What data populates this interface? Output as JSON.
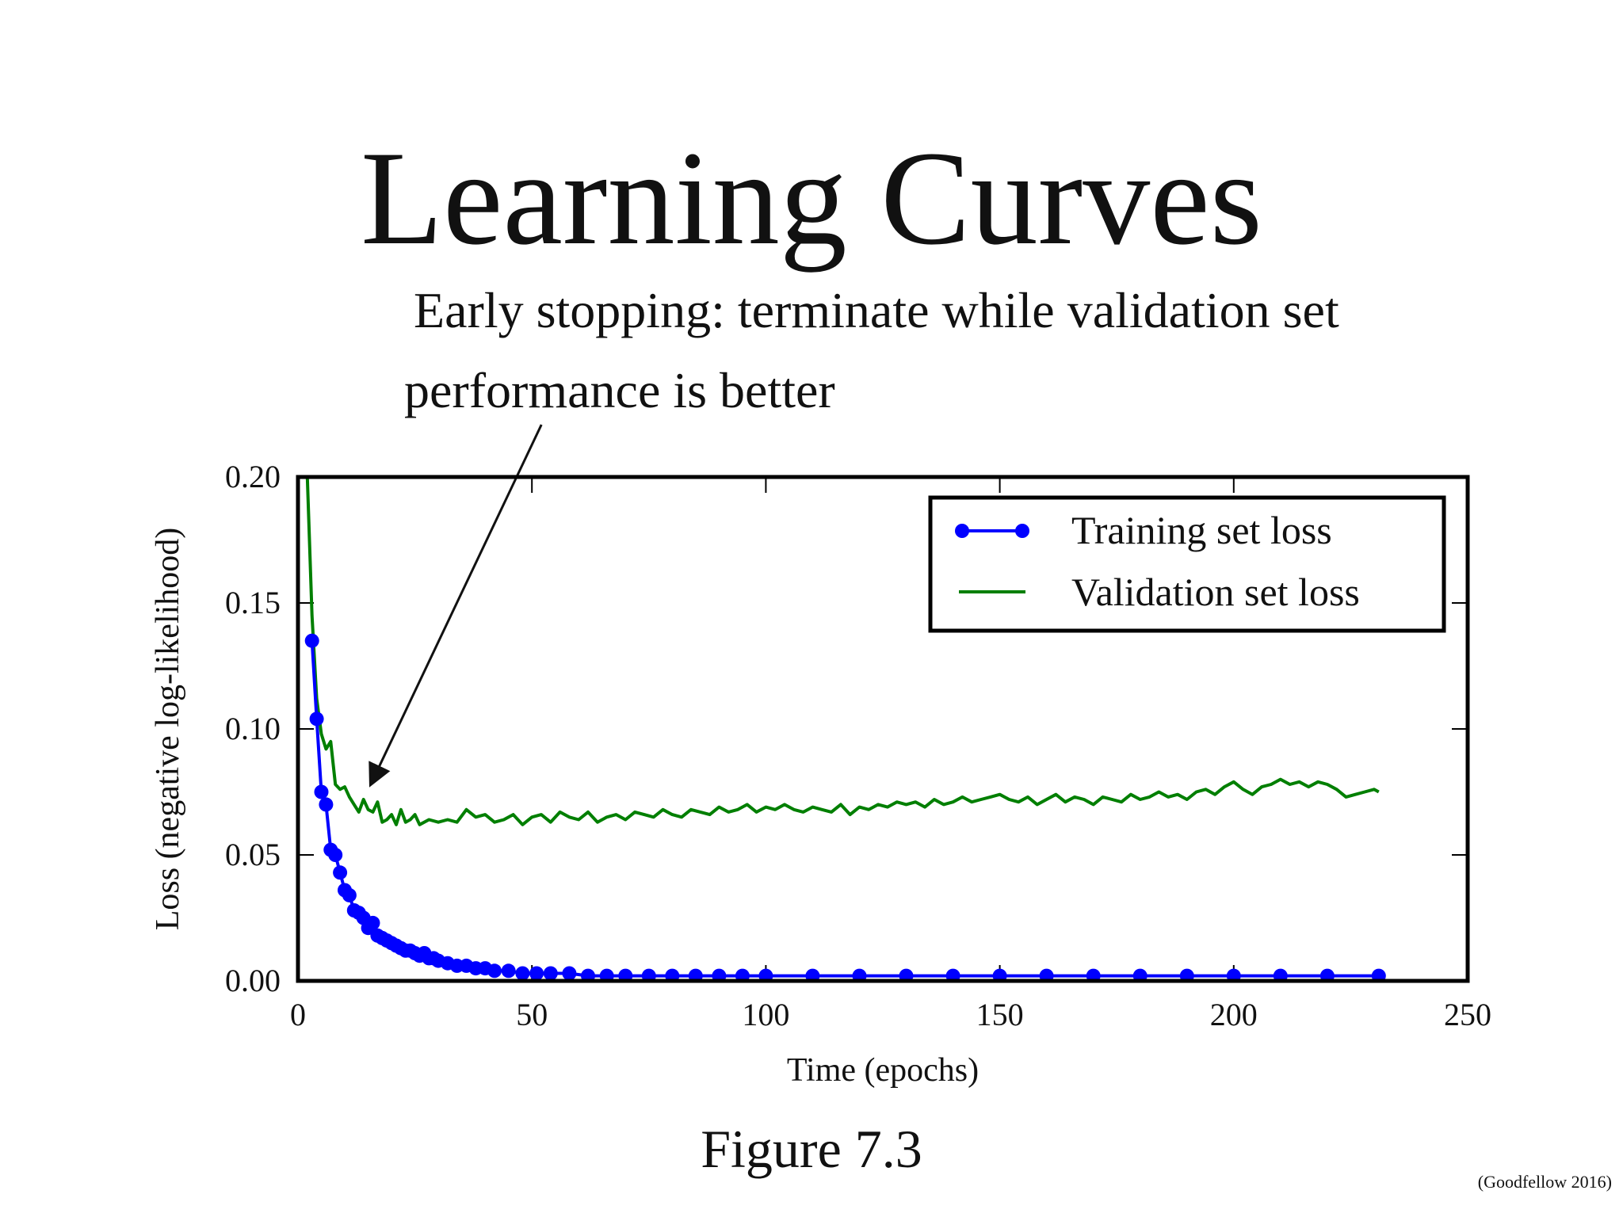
{
  "slide": {
    "title": "Learning Curves",
    "callout_line_1": "Early stopping: terminate while validation set",
    "callout_line_2": "performance is better",
    "caption": "Figure 7.3",
    "credit": "(Goodfellow 2016)"
  },
  "colors": {
    "training": "#0000ff",
    "validation": "#007f00",
    "axes": "#000000"
  },
  "chart_data": {
    "type": "line",
    "title": "",
    "xlabel": "Time (epochs)",
    "ylabel": "Loss (negative log-likelihood)",
    "xlim": [
      0,
      250
    ],
    "ylim": [
      0,
      0.2
    ],
    "x_ticks": [
      "0",
      "50",
      "100",
      "150",
      "200",
      "250"
    ],
    "y_ticks": [
      "0.00",
      "0.05",
      "0.10",
      "0.15",
      "0.20"
    ],
    "grid": false,
    "legend_position": "top-right",
    "series": [
      {
        "name": "Training set loss",
        "marker": "circle",
        "x": [
          3,
          4,
          5,
          6,
          7,
          8,
          9,
          10,
          11,
          12,
          13,
          14,
          15,
          16,
          17,
          18,
          19,
          20,
          21,
          22,
          23,
          24,
          25,
          26,
          27,
          28,
          29,
          30,
          32,
          34,
          36,
          38,
          40,
          42,
          45,
          48,
          51,
          54,
          58,
          62,
          66,
          70,
          75,
          80,
          85,
          90,
          95,
          100,
          110,
          120,
          130,
          140,
          150,
          160,
          170,
          180,
          190,
          200,
          210,
          220,
          231
        ],
        "y": [
          0.135,
          0.104,
          0.075,
          0.07,
          0.052,
          0.05,
          0.043,
          0.036,
          0.034,
          0.028,
          0.027,
          0.025,
          0.021,
          0.023,
          0.018,
          0.017,
          0.016,
          0.015,
          0.014,
          0.013,
          0.012,
          0.012,
          0.011,
          0.01,
          0.011,
          0.009,
          0.009,
          0.008,
          0.007,
          0.006,
          0.006,
          0.005,
          0.005,
          0.004,
          0.004,
          0.003,
          0.003,
          0.003,
          0.003,
          0.002,
          0.002,
          0.002,
          0.002,
          0.002,
          0.002,
          0.002,
          0.002,
          0.002,
          0.002,
          0.002,
          0.002,
          0.002,
          0.002,
          0.002,
          0.002,
          0.002,
          0.002,
          0.002,
          0.002,
          0.002,
          0.002
        ]
      },
      {
        "name": "Validation set loss",
        "marker": "none",
        "x": [
          2,
          3,
          4,
          5,
          6,
          7,
          8,
          9,
          10,
          11,
          12,
          13,
          14,
          15,
          16,
          17,
          18,
          19,
          20,
          21,
          22,
          23,
          24,
          25,
          26,
          28,
          30,
          32,
          34,
          36,
          38,
          40,
          42,
          44,
          46,
          48,
          50,
          52,
          54,
          56,
          58,
          60,
          62,
          64,
          66,
          68,
          70,
          72,
          74,
          76,
          78,
          80,
          82,
          84,
          86,
          88,
          90,
          92,
          94,
          96,
          98,
          100,
          102,
          104,
          106,
          108,
          110,
          112,
          114,
          116,
          118,
          120,
          122,
          124,
          126,
          128,
          130,
          132,
          134,
          136,
          138,
          140,
          142,
          144,
          146,
          148,
          150,
          152,
          154,
          156,
          158,
          160,
          162,
          164,
          166,
          168,
          170,
          172,
          174,
          176,
          178,
          180,
          182,
          184,
          186,
          188,
          190,
          192,
          194,
          196,
          198,
          200,
          202,
          204,
          206,
          208,
          210,
          212,
          214,
          216,
          218,
          220,
          222,
          224,
          226,
          228,
          230,
          231
        ],
        "y": [
          0.2,
          0.145,
          0.112,
          0.098,
          0.092,
          0.095,
          0.078,
          0.076,
          0.077,
          0.073,
          0.07,
          0.067,
          0.072,
          0.068,
          0.067,
          0.071,
          0.063,
          0.064,
          0.066,
          0.062,
          0.068,
          0.063,
          0.064,
          0.066,
          0.062,
          0.064,
          0.063,
          0.064,
          0.063,
          0.068,
          0.065,
          0.066,
          0.063,
          0.064,
          0.066,
          0.062,
          0.065,
          0.066,
          0.063,
          0.067,
          0.065,
          0.064,
          0.067,
          0.063,
          0.065,
          0.066,
          0.064,
          0.067,
          0.066,
          0.065,
          0.068,
          0.066,
          0.065,
          0.068,
          0.067,
          0.066,
          0.069,
          0.067,
          0.068,
          0.07,
          0.067,
          0.069,
          0.068,
          0.07,
          0.068,
          0.067,
          0.069,
          0.068,
          0.067,
          0.07,
          0.066,
          0.069,
          0.068,
          0.07,
          0.069,
          0.071,
          0.07,
          0.071,
          0.069,
          0.072,
          0.07,
          0.071,
          0.073,
          0.071,
          0.072,
          0.073,
          0.074,
          0.072,
          0.071,
          0.073,
          0.07,
          0.072,
          0.074,
          0.071,
          0.073,
          0.072,
          0.07,
          0.073,
          0.072,
          0.071,
          0.074,
          0.072,
          0.073,
          0.075,
          0.073,
          0.074,
          0.072,
          0.075,
          0.076,
          0.074,
          0.077,
          0.079,
          0.076,
          0.074,
          0.077,
          0.078,
          0.08,
          0.078,
          0.079,
          0.077,
          0.079,
          0.078,
          0.076,
          0.073,
          0.074,
          0.075,
          0.076,
          0.075
        ]
      }
    ],
    "annotations": [
      {
        "type": "arrow",
        "from": [
          50,
          0.2
        ],
        "to": [
          15,
          0.076
        ]
      }
    ]
  }
}
